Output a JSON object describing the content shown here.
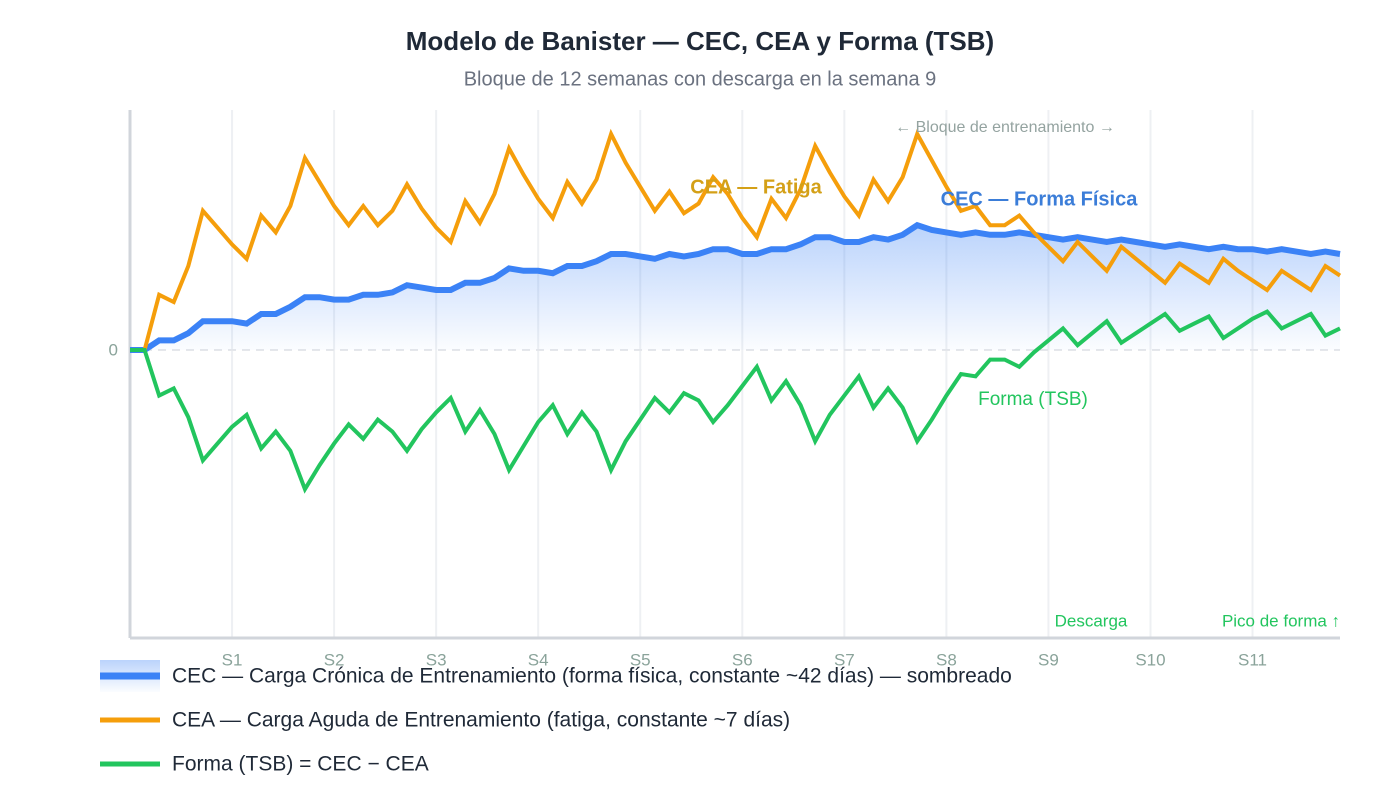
{
  "chart_data": {
    "type": "line",
    "title": "Modelo de Banister — CEC, CEA y Forma (TSB)",
    "subtitle": "Bloque de 12 semanas con descarga en la semana 9",
    "annotations": {
      "cea": "CEA — Fatiga",
      "cec": "CEC — Forma Física",
      "tsb": "Forma (TSB)",
      "block": "← Bloque de entrenamiento →",
      "deload": "Descarga",
      "peak": "Pico de forma ↑"
    },
    "x": [
      0,
      1,
      2,
      3,
      4,
      5,
      6,
      7,
      8,
      9,
      10,
      11,
      12,
      13,
      14,
      15,
      16,
      17,
      18,
      19,
      20,
      21,
      22,
      23,
      24,
      25,
      26,
      27,
      28,
      29,
      30,
      31,
      32,
      33,
      34,
      35,
      36,
      37,
      38,
      39,
      40,
      41,
      42,
      43,
      44,
      45,
      46,
      47,
      48,
      49,
      50,
      51,
      52,
      53,
      54,
      55,
      56,
      57,
      58,
      59,
      60,
      61,
      62,
      63,
      64,
      65,
      66,
      67,
      68,
      69,
      70,
      71,
      72,
      73,
      74,
      75,
      76,
      77,
      78,
      79,
      80,
      81,
      82,
      83
    ],
    "xlim": [
      0,
      83
    ],
    "xticks": [
      {
        "value": 7,
        "label": "S1"
      },
      {
        "value": 14,
        "label": "S2"
      },
      {
        "value": 21,
        "label": "S3"
      },
      {
        "value": 28,
        "label": "S4"
      },
      {
        "value": 35,
        "label": "S5"
      },
      {
        "value": 42,
        "label": "S6"
      },
      {
        "value": 49,
        "label": "S7"
      },
      {
        "value": 56,
        "label": "S8"
      },
      {
        "value": 63,
        "label": "S9"
      },
      {
        "value": 70,
        "label": "S10"
      },
      {
        "value": 77,
        "label": "S11"
      }
    ],
    "ylim": [
      -120,
      100
    ],
    "yticks": [
      0
    ],
    "grid": true,
    "series": [
      {
        "name": "CEC — Carga Crónica de Entrenamiento (forma física, constante ~42 días) — sombreado",
        "color": "#3b82f6",
        "area": true,
        "values": [
          0,
          0,
          4,
          4,
          7,
          12,
          12,
          12,
          11,
          15,
          15,
          18,
          22,
          22,
          21,
          21,
          23,
          23,
          24,
          27,
          26,
          25,
          25,
          28,
          28,
          30,
          34,
          33,
          33,
          32,
          35,
          35,
          37,
          40,
          40,
          39,
          38,
          40,
          39,
          40,
          42,
          42,
          40,
          40,
          42,
          42,
          44,
          47,
          47,
          45,
          45,
          47,
          46,
          48,
          52,
          50,
          49,
          48,
          49,
          48,
          48,
          49,
          48,
          47,
          46,
          47,
          46,
          45,
          46,
          45,
          44,
          43,
          44,
          43,
          42,
          43,
          42,
          42,
          41,
          42,
          41,
          40,
          41,
          40
        ]
      },
      {
        "name": "CEA — Carga Aguda de Entrenamiento (fatiga, constante ~7 días)",
        "color": "#f59e0b",
        "area": false,
        "values": [
          0,
          0,
          23,
          20,
          35,
          58,
          51,
          44,
          38,
          56,
          49,
          60,
          80,
          70,
          60,
          52,
          60,
          52,
          58,
          69,
          59,
          51,
          45,
          62,
          53,
          65,
          84,
          73,
          63,
          55,
          70,
          61,
          71,
          90,
          78,
          68,
          58,
          66,
          57,
          61,
          72,
          65,
          55,
          47,
          63,
          55,
          67,
          85,
          74,
          64,
          56,
          71,
          62,
          72,
          90,
          79,
          68,
          58,
          60,
          52,
          52,
          56,
          49,
          43,
          37,
          45,
          39,
          33,
          43,
          38,
          33,
          28,
          36,
          32,
          28,
          38,
          33,
          29,
          25,
          33,
          29,
          25,
          35,
          31
        ]
      },
      {
        "name": "Forma (TSB) = CEC − CEA",
        "color": "#22c55e",
        "area": false,
        "values": [
          0,
          0,
          -19,
          -16,
          -28,
          -46,
          -39,
          -32,
          -27,
          -41,
          -34,
          -42,
          -58,
          -48,
          -39,
          -31,
          -37,
          -29,
          -34,
          -42,
          -33,
          -26,
          -20,
          -34,
          -25,
          -35,
          -50,
          -40,
          -30,
          -23,
          -35,
          -26,
          -34,
          -50,
          -38,
          -29,
          -20,
          -26,
          -18,
          -21,
          -30,
          -23,
          -15,
          -7,
          -21,
          -13,
          -23,
          -38,
          -27,
          -19,
          -11,
          -24,
          -16,
          -24,
          -38,
          -29,
          -19,
          -10,
          -11,
          -4,
          -4,
          -7,
          -1,
          4,
          9,
          2,
          7,
          12,
          3,
          7,
          11,
          15,
          8,
          11,
          14,
          5,
          9,
          13,
          16,
          9,
          12,
          15,
          6,
          9
        ]
      }
    ]
  }
}
